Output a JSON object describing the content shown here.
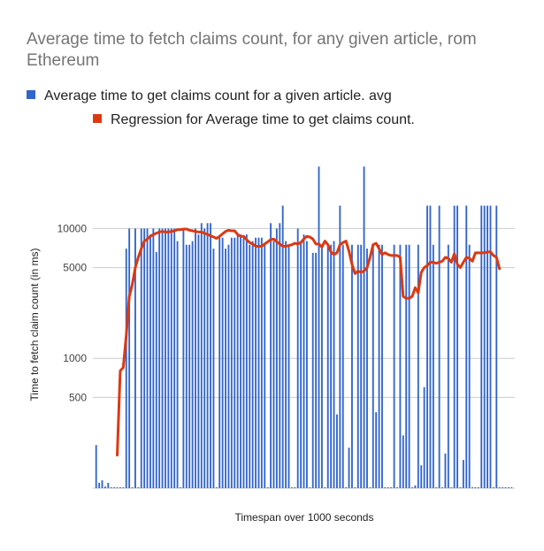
{
  "chart_data": {
    "type": "bar",
    "title_lines": [
      "Average time to fetch claims count, for any given article, rom",
      "Ethereum"
    ],
    "xlabel": "Timespan over 1000 seconds",
    "ylabel": "Time to fetch claim count (in ms)",
    "y_scale": "log",
    "ylim": [
      100,
      40000
    ],
    "yticks": [
      {
        "value": 500,
        "label": "500"
      },
      {
        "value": 1000,
        "label": "1000"
      },
      {
        "value": 5000,
        "label": "5000"
      },
      {
        "value": 10000,
        "label": "10000"
      }
    ],
    "grid": true,
    "legend_position": "top",
    "series": [
      {
        "name": "Average time to get claims count for a given article. avg",
        "type": "bar",
        "color": "#3366cc",
        "values": [
          215,
          110,
          115,
          103,
          110,
          101,
          101,
          101,
          101,
          101,
          7000,
          10000,
          101,
          10000,
          101,
          10000,
          10000,
          10000,
          9000,
          10000,
          6600,
          10000,
          10000,
          10000,
          10000,
          10000,
          10000,
          8000,
          101,
          10000,
          7500,
          7500,
          8000,
          10000,
          9000,
          11000,
          10000,
          11000,
          11000,
          7000,
          101,
          8500,
          8500,
          7000,
          7500,
          8500,
          8500,
          9000,
          9000,
          8500,
          9000,
          7500,
          8000,
          8500,
          8500,
          8500,
          7500,
          101,
          11000,
          8000,
          10000,
          11000,
          15000,
          8000,
          7500,
          101,
          101,
          10000,
          8000,
          9000,
          8000,
          101,
          6500,
          6500,
          30000,
          7500,
          101,
          7500,
          7500,
          8000,
          370,
          15000,
          7500,
          101,
          205,
          7500,
          101,
          7500,
          7500,
          30000,
          7000,
          101,
          7500,
          385,
          7500,
          7500,
          101,
          101,
          101,
          7500,
          101,
          7500,
          255,
          7500,
          7500,
          101,
          105,
          7500,
          150,
          600,
          15000,
          15000,
          7500,
          101,
          15000,
          101,
          185,
          7500,
          101,
          15000,
          15000,
          101,
          165,
          15000,
          7500,
          101,
          101,
          101,
          15000,
          15000,
          15000,
          15000,
          101,
          15000,
          101,
          101,
          101,
          101,
          101
        ]
      },
      {
        "name": "Regression for Average time to get claims count.",
        "type": "line",
        "color": "#dc3912",
        "start_index": 7,
        "values": [
          180,
          800,
          850,
          1500,
          3000,
          3700,
          5000,
          6000,
          7000,
          8000,
          8300,
          8700,
          9000,
          9200,
          9400,
          9500,
          9400,
          9400,
          9500,
          9600,
          9800,
          9800,
          9900,
          9900,
          9700,
          9600,
          9500,
          9400,
          9400,
          9200,
          9000,
          8800,
          8600,
          8400,
          8700,
          9100,
          9500,
          9700,
          9600,
          9600,
          9000,
          8700,
          8700,
          8200,
          7800,
          7600,
          7300,
          7300,
          7300,
          7600,
          7900,
          8200,
          8300,
          7900,
          7600,
          7300,
          7300,
          7400,
          7500,
          7700,
          7600,
          7800,
          8300,
          8700,
          8600,
          8300,
          7600,
          7600,
          7200,
          8000,
          7500,
          6600,
          6300,
          6500,
          7500,
          7800,
          8000,
          6700,
          5300,
          4500,
          4700,
          4600,
          4700,
          5000,
          6000,
          7500,
          7700,
          7000,
          6300,
          6500,
          6300,
          6200,
          6200,
          6200,
          6000,
          3000,
          2900,
          2900,
          3000,
          3500,
          3200,
          4600,
          5000,
          5200,
          5500,
          5500,
          5400,
          5500,
          5600,
          6000,
          5900,
          5500,
          6400,
          5300,
          5000,
          5500,
          6000,
          5900,
          5600,
          6500,
          6500,
          6500,
          6500,
          6600,
          6600,
          6200,
          6000,
          4900
        ]
      }
    ]
  }
}
